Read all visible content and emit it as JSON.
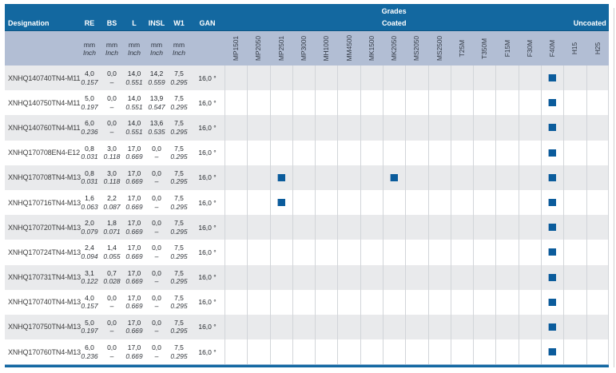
{
  "table": {
    "header": {
      "designation": "Designation",
      "dim_columns": [
        "RE",
        "BS",
        "L",
        "INSL",
        "W1"
      ],
      "gan": "GAN",
      "grades_title": "Grades",
      "coated_label": "Coated",
      "uncoated_label": "Uncoated",
      "unit_mm": "mm",
      "unit_inch": "Inch"
    },
    "grade_columns": {
      "coated": [
        "MP1501",
        "MP2050",
        "MP2501",
        "MP3000",
        "MH1000",
        "MM4500",
        "MK1500",
        "MK2050",
        "MS2050",
        "MS2500",
        "T25M",
        "T350M",
        "F15M",
        "F30M",
        "F40M"
      ],
      "uncoated": [
        "H15",
        "H25"
      ]
    },
    "colors": {
      "header_blue": "#1368A0",
      "subheader_blue_gray": "#B2BED4",
      "row_alt_gray": "#E9EAEC",
      "grade_mark_blue": "#0B5C9C"
    },
    "grade_mark_symbol": "square",
    "rows": [
      {
        "designation": "XNHQ140740TN4-M11",
        "re": [
          "4,0",
          "0.157"
        ],
        "bs": [
          "0,0",
          "–"
        ],
        "l": [
          "14,0",
          "0.551"
        ],
        "insl": [
          "14,2",
          "0.559"
        ],
        "w1": [
          "7,5",
          "0.295"
        ],
        "gan": "16,0 °",
        "marked": [
          "F40M"
        ]
      },
      {
        "designation": "XNHQ140750TN4-M11",
        "re": [
          "5,0",
          "0.197"
        ],
        "bs": [
          "0,0",
          "–"
        ],
        "l": [
          "14,0",
          "0.551"
        ],
        "insl": [
          "13,9",
          "0.547"
        ],
        "w1": [
          "7,5",
          "0.295"
        ],
        "gan": "16,0 °",
        "marked": [
          "F40M"
        ]
      },
      {
        "designation": "XNHQ140760TN4-M11",
        "re": [
          "6,0",
          "0.236"
        ],
        "bs": [
          "0,0",
          "–"
        ],
        "l": [
          "14,0",
          "0.551"
        ],
        "insl": [
          "13,6",
          "0.535"
        ],
        "w1": [
          "7,5",
          "0.295"
        ],
        "gan": "16,0 °",
        "marked": [
          "F40M"
        ]
      },
      {
        "designation": "XNHQ170708EN4-E12",
        "re": [
          "0,8",
          "0.031"
        ],
        "bs": [
          "3,0",
          "0.118"
        ],
        "l": [
          "17,0",
          "0.669"
        ],
        "insl": [
          "0,0",
          "–"
        ],
        "w1": [
          "7,5",
          "0.295"
        ],
        "gan": "16,0 °",
        "marked": [
          "F40M"
        ]
      },
      {
        "designation": "XNHQ170708TN4-M13",
        "re": [
          "0,8",
          "0.031"
        ],
        "bs": [
          "3,0",
          "0.118"
        ],
        "l": [
          "17,0",
          "0.669"
        ],
        "insl": [
          "0,0",
          "–"
        ],
        "w1": [
          "7,5",
          "0.295"
        ],
        "gan": "16,0 °",
        "marked": [
          "MP2501",
          "MK2050",
          "F40M"
        ]
      },
      {
        "designation": "XNHQ170716TN4-M13",
        "re": [
          "1,6",
          "0.063"
        ],
        "bs": [
          "2,2",
          "0.087"
        ],
        "l": [
          "17,0",
          "0.669"
        ],
        "insl": [
          "0,0",
          "–"
        ],
        "w1": [
          "7,5",
          "0.295"
        ],
        "gan": "16,0 °",
        "marked": [
          "MP2501",
          "F40M"
        ]
      },
      {
        "designation": "XNHQ170720TN4-M13",
        "re": [
          "2,0",
          "0.079"
        ],
        "bs": [
          "1,8",
          "0.071"
        ],
        "l": [
          "17,0",
          "0.669"
        ],
        "insl": [
          "0,0",
          "–"
        ],
        "w1": [
          "7,5",
          "0.295"
        ],
        "gan": "16,0 °",
        "marked": [
          "F40M"
        ]
      },
      {
        "designation": "XNHQ170724TN4-M13",
        "re": [
          "2,4",
          "0.094"
        ],
        "bs": [
          "1,4",
          "0.055"
        ],
        "l": [
          "17,0",
          "0.669"
        ],
        "insl": [
          "0,0",
          "–"
        ],
        "w1": [
          "7,5",
          "0.295"
        ],
        "gan": "16,0 °",
        "marked": [
          "F40M"
        ]
      },
      {
        "designation": "XNHQ170731TN4-M13",
        "re": [
          "3,1",
          "0.122"
        ],
        "bs": [
          "0,7",
          "0.028"
        ],
        "l": [
          "17,0",
          "0.669"
        ],
        "insl": [
          "0,0",
          "–"
        ],
        "w1": [
          "7,5",
          "0.295"
        ],
        "gan": "16,0 °",
        "marked": [
          "F40M"
        ]
      },
      {
        "designation": "XNHQ170740TN4-M13",
        "re": [
          "4,0",
          "0.157"
        ],
        "bs": [
          "0,0",
          "–"
        ],
        "l": [
          "17,0",
          "0.669"
        ],
        "insl": [
          "0,0",
          "–"
        ],
        "w1": [
          "7,5",
          "0.295"
        ],
        "gan": "16,0 °",
        "marked": [
          "F40M"
        ]
      },
      {
        "designation": "XNHQ170750TN4-M13",
        "re": [
          "5,0",
          "0.197"
        ],
        "bs": [
          "0,0",
          "–"
        ],
        "l": [
          "17,0",
          "0.669"
        ],
        "insl": [
          "0,0",
          "–"
        ],
        "w1": [
          "7,5",
          "0.295"
        ],
        "gan": "16,0 °",
        "marked": [
          "F40M"
        ]
      },
      {
        "designation": "XNHQ170760TN4-M13",
        "re": [
          "6,0",
          "0.236"
        ],
        "bs": [
          "0,0",
          "–"
        ],
        "l": [
          "17,0",
          "0.669"
        ],
        "insl": [
          "0,0",
          "–"
        ],
        "w1": [
          "7,5",
          "0.295"
        ],
        "gan": "16,0 °",
        "marked": [
          "F40M"
        ]
      }
    ]
  }
}
